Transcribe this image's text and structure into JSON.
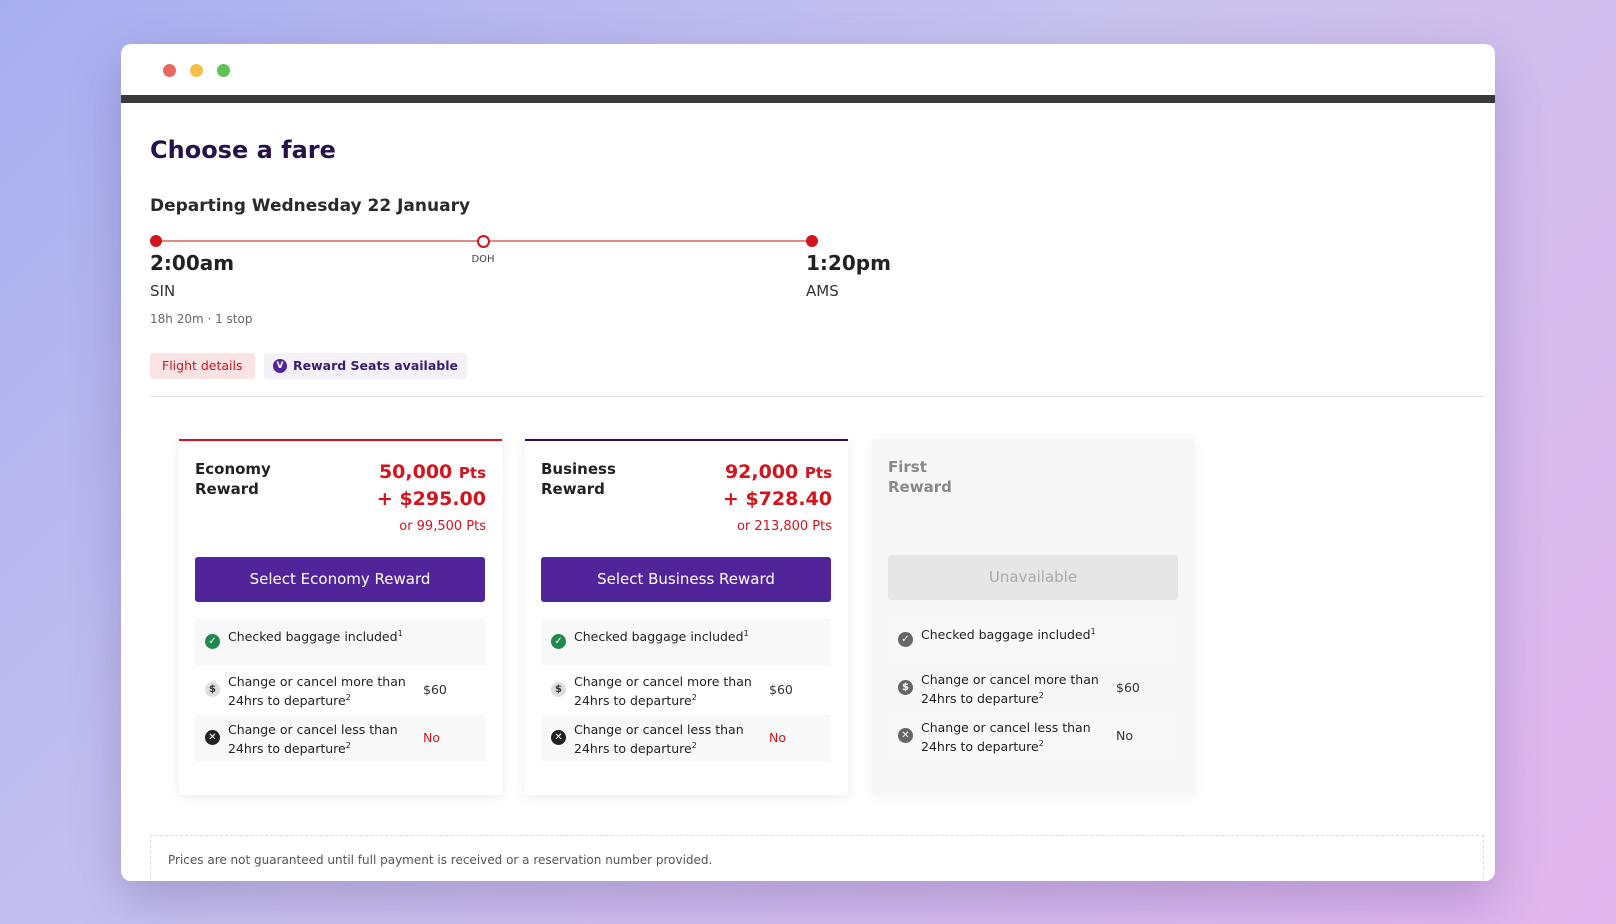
{
  "header": {
    "title": "Choose a fare",
    "date": "Departing Wednesday 22 January"
  },
  "itinerary": {
    "departure_time": "2:00am",
    "departure_code": "SIN",
    "stop_code": "DOH",
    "arrival_time": "1:20pm",
    "arrival_code": "AMS",
    "summary": "18h 20m · 1 stop"
  },
  "tags": {
    "flight_details": "Flight details",
    "reward_icon": "V",
    "reward_seats": "Reward Seats available"
  },
  "fares": [
    {
      "name": "Economy Reward",
      "points": "50,000",
      "points_unit": "Pts",
      "cash": "+ $295.00",
      "alternative": "or 99,500 Pts",
      "button": "Select Economy Reward",
      "features": [
        {
          "icon": "✓",
          "text": "Checked baggage included",
          "note": "1"
        },
        {
          "icon": "$",
          "text": "Change or cancel more than 24hrs to departure",
          "note": "2",
          "value": "$60"
        },
        {
          "icon": "✕",
          "text": "Change or cancel less than 24hrs to departure",
          "note": "2",
          "value": "No"
        }
      ]
    },
    {
      "name": "Business Reward",
      "points": "92,000",
      "points_unit": "Pts",
      "cash": "+ $728.40",
      "alternative": "or 213,800 Pts",
      "button": "Select Business Reward",
      "features": [
        {
          "icon": "✓",
          "text": "Checked baggage included",
          "note": "1"
        },
        {
          "icon": "$",
          "text": "Change or cancel more than 24hrs to departure",
          "note": "2",
          "value": "$60"
        },
        {
          "icon": "✕",
          "text": "Change or cancel less than 24hrs to departure",
          "note": "2",
          "value": "No"
        }
      ]
    },
    {
      "name": "First Reward",
      "button": "Unavailable",
      "features": [
        {
          "icon": "✓",
          "text": "Checked baggage included",
          "note": "1"
        },
        {
          "icon": "$",
          "text": "Change or cancel more than 24hrs to departure",
          "note": "2",
          "value": "$60"
        },
        {
          "icon": "✕",
          "text": "Change or cancel less than 24hrs to departure",
          "note": "2",
          "value": "No"
        }
      ]
    }
  ],
  "footer": {
    "note": "Prices are not guaranteed until full payment is received or a reservation number provided."
  }
}
